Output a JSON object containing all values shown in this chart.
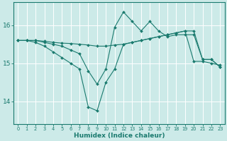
{
  "xlabel": "Humidex (Indice chaleur)",
  "bg_color": "#cceae8",
  "grid_major_color": "#ffffff",
  "grid_minor_color": "#ddf4f2",
  "line_color": "#1a7a6e",
  "xlim": [
    -0.5,
    23.5
  ],
  "ylim": [
    13.4,
    16.6
  ],
  "yticks": [
    14,
    15,
    16
  ],
  "xticks": [
    0,
    1,
    2,
    3,
    4,
    5,
    6,
    7,
    8,
    9,
    10,
    11,
    12,
    13,
    14,
    15,
    16,
    17,
    18,
    19,
    20,
    21,
    22,
    23
  ],
  "series": [
    {
      "x": [
        0,
        1,
        2,
        3,
        4,
        5,
        6,
        7,
        8,
        9,
        10,
        11,
        12,
        13,
        14,
        15,
        16,
        17,
        18,
        19,
        20,
        21,
        22,
        23
      ],
      "y": [
        15.6,
        15.6,
        15.6,
        15.55,
        15.5,
        15.45,
        15.35,
        15.25,
        14.8,
        14.45,
        14.85,
        15.95,
        16.35,
        16.1,
        15.85,
        16.1,
        15.85,
        15.7,
        15.75,
        15.75,
        15.75,
        15.1,
        15.1,
        14.9
      ]
    },
    {
      "x": [
        0,
        1,
        2,
        3,
        4,
        5,
        6,
        7,
        8,
        9,
        10,
        11,
        12,
        13,
        14,
        15,
        16,
        17,
        18,
        19,
        20,
        21,
        22,
        23
      ],
      "y": [
        15.6,
        15.6,
        15.55,
        15.45,
        15.3,
        15.15,
        15.0,
        14.85,
        13.85,
        13.75,
        14.5,
        14.85,
        15.5,
        15.55,
        15.6,
        15.65,
        15.7,
        15.75,
        15.8,
        15.85,
        15.05,
        15.05,
        15.0,
        14.95
      ]
    },
    {
      "x": [
        0,
        1,
        2,
        3,
        4,
        5,
        6,
        7,
        8,
        9,
        10,
        11,
        12,
        13,
        14,
        15,
        16,
        17,
        18,
        19,
        20,
        21,
        22,
        23
      ],
      "y": [
        15.6,
        15.6,
        15.6,
        15.58,
        15.55,
        15.53,
        15.52,
        15.5,
        15.48,
        15.45,
        15.45,
        15.48,
        15.5,
        15.55,
        15.6,
        15.65,
        15.7,
        15.75,
        15.8,
        15.85,
        15.85,
        15.1,
        15.1,
        14.9
      ]
    }
  ]
}
